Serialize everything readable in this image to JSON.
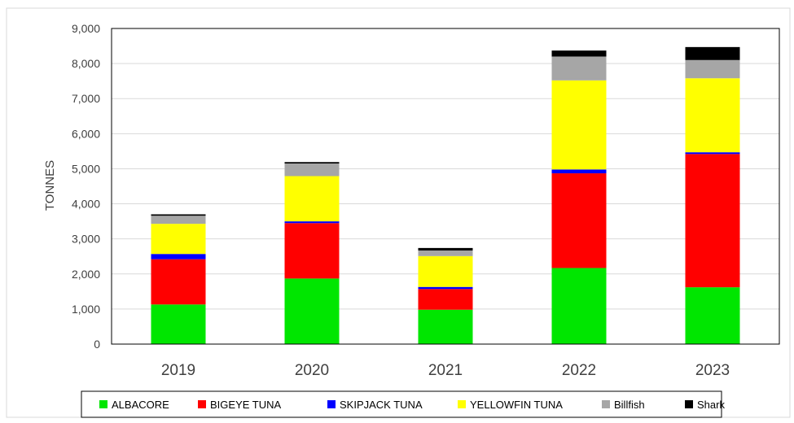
{
  "chart_data": {
    "type": "bar",
    "stacked": true,
    "title": "",
    "xlabel": "",
    "ylabel": "TONNES",
    "ylim": [
      0,
      9000
    ],
    "ytick_step": 1000,
    "ytick_labels": [
      "0",
      "1,000",
      "2,000",
      "3,000",
      "4,000",
      "5,000",
      "6,000",
      "7,000",
      "8,000",
      "9,000"
    ],
    "grid": true,
    "legend_position": "bottom",
    "categories": [
      "2019",
      "2020",
      "2021",
      "2022",
      "2023"
    ],
    "series": [
      {
        "name": "ALBACORE",
        "color": "#00e600",
        "values": [
          1130,
          1870,
          980,
          2170,
          1620
        ]
      },
      {
        "name": "BIGEYE TUNA",
        "color": "#ff0000",
        "values": [
          1290,
          1580,
          590,
          2700,
          3800
        ]
      },
      {
        "name": "SKIPJACK TUNA",
        "color": "#0000ff",
        "values": [
          150,
          50,
          60,
          110,
          50
        ]
      },
      {
        "name": "YELLOWFIN TUNA",
        "color": "#ffff00",
        "values": [
          860,
          1290,
          880,
          2540,
          2110
        ]
      },
      {
        "name": "Billfish",
        "color": "#a6a6a6",
        "values": [
          230,
          360,
          160,
          680,
          520
        ]
      },
      {
        "name": "Shark",
        "color": "#000000",
        "values": [
          40,
          40,
          70,
          170,
          370
        ]
      }
    ]
  }
}
